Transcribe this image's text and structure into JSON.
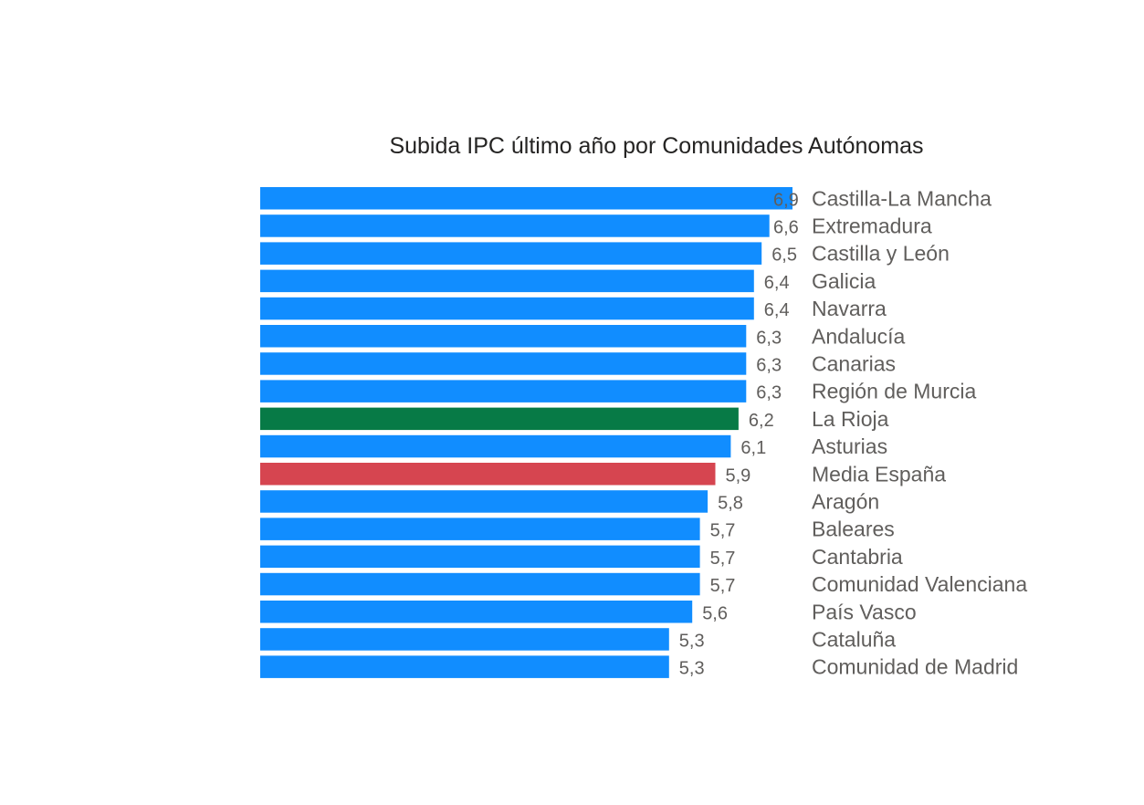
{
  "chart_data": {
    "type": "bar",
    "orientation": "horizontal",
    "title": "Subida IPC último año por Comunidades Autónomas",
    "categories": [
      "Castilla-La Mancha",
      "Extremadura",
      "Castilla y León",
      "Galicia",
      "Navarra",
      "Andalucía",
      "Canarias",
      "Región de Murcia",
      "La Rioja",
      "Asturias",
      "Media España",
      "Aragón",
      "Baleares",
      "Cantabria",
      "Comunidad Valenciana",
      "País Vasco",
      "Cataluña",
      "Comunidad de Madrid"
    ],
    "values": [
      6.9,
      6.6,
      6.5,
      6.4,
      6.4,
      6.3,
      6.3,
      6.3,
      6.2,
      6.1,
      5.9,
      5.8,
      5.7,
      5.7,
      5.7,
      5.6,
      5.3,
      5.3
    ],
    "value_labels": [
      "6,9",
      "6,6",
      "6,5",
      "6,4",
      "6,4",
      "6,3",
      "6,3",
      "6,3",
      "6,2",
      "6,1",
      "5,9",
      "5,8",
      "5,7",
      "5,7",
      "5,7",
      "5,6",
      "5,3",
      "5,3"
    ],
    "bar_colors": [
      "#118DFF",
      "#118DFF",
      "#118DFF",
      "#118DFF",
      "#118DFF",
      "#118DFF",
      "#118DFF",
      "#118DFF",
      "#077A46",
      "#118DFF",
      "#D64550",
      "#118DFF",
      "#118DFF",
      "#118DFF",
      "#118DFF",
      "#118DFF",
      "#118DFF",
      "#118DFF"
    ],
    "xlabel": "",
    "ylabel": "",
    "xlim": [
      0,
      6.9
    ],
    "x_axis_visible": false,
    "grid": false,
    "legend": "none"
  }
}
